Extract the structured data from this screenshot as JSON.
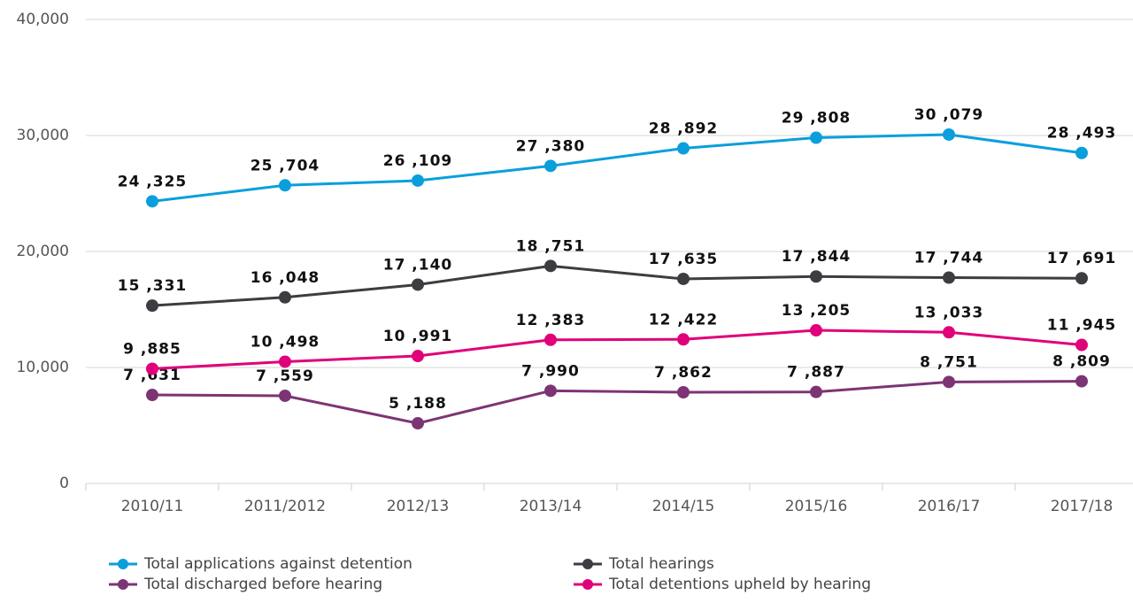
{
  "chart_data": {
    "type": "line",
    "categories": [
      "2010/11",
      "2011/2012",
      "2012/13",
      "2013/14",
      "2014/15",
      "2015/16",
      "2016/17",
      "2017/18"
    ],
    "series": [
      {
        "name": "Total applications against detention",
        "color": "#0a9fdc",
        "values": [
          24325,
          25704,
          26109,
          27380,
          28892,
          29808,
          30079,
          28493
        ],
        "value_labels": [
          "24 ,325",
          "25 ,704",
          "26 ,109",
          "27 ,380",
          "28 ,892",
          "29 ,808",
          "30 ,079",
          "28 ,493"
        ]
      },
      {
        "name": "Total hearings",
        "color": "#3c3d40",
        "values": [
          15331,
          16048,
          17140,
          18751,
          17635,
          17844,
          17744,
          17691
        ],
        "value_labels": [
          "15 ,331",
          "16 ,048",
          "17 ,140",
          "18 ,751",
          "17 ,635",
          "17 ,844",
          "17 ,744",
          "17 ,691"
        ]
      },
      {
        "name": "Total discharged before hearing",
        "color": "#7d3474",
        "values": [
          7631,
          7559,
          5188,
          7990,
          7862,
          7887,
          8751,
          8809
        ],
        "value_labels": [
          "7 ,631",
          "7 ,559",
          "5 ,188",
          "7 ,990",
          "7 ,862",
          "7 ,887",
          "8 ,751",
          "8 ,809"
        ]
      },
      {
        "name": "Total detentions upheld by hearing",
        "color": "#e0007a",
        "values": [
          9885,
          10498,
          10991,
          12383,
          12422,
          13205,
          13033,
          11945
        ],
        "value_labels": [
          "9 ,885",
          "10 ,498",
          "10 ,991",
          "12 ,383",
          "12 ,422",
          "13 ,205",
          "13 ,033",
          "11 ,945"
        ]
      }
    ],
    "ylim": [
      0,
      40000
    ],
    "yticks": [
      0,
      {
        "value": 10000,
        "label": "10,000"
      },
      {
        "value": 20000,
        "label": "20,000"
      },
      {
        "value": 30000,
        "label": "30,000"
      },
      {
        "value": 40000,
        "label": "40,000"
      }
    ],
    "grid": true
  }
}
